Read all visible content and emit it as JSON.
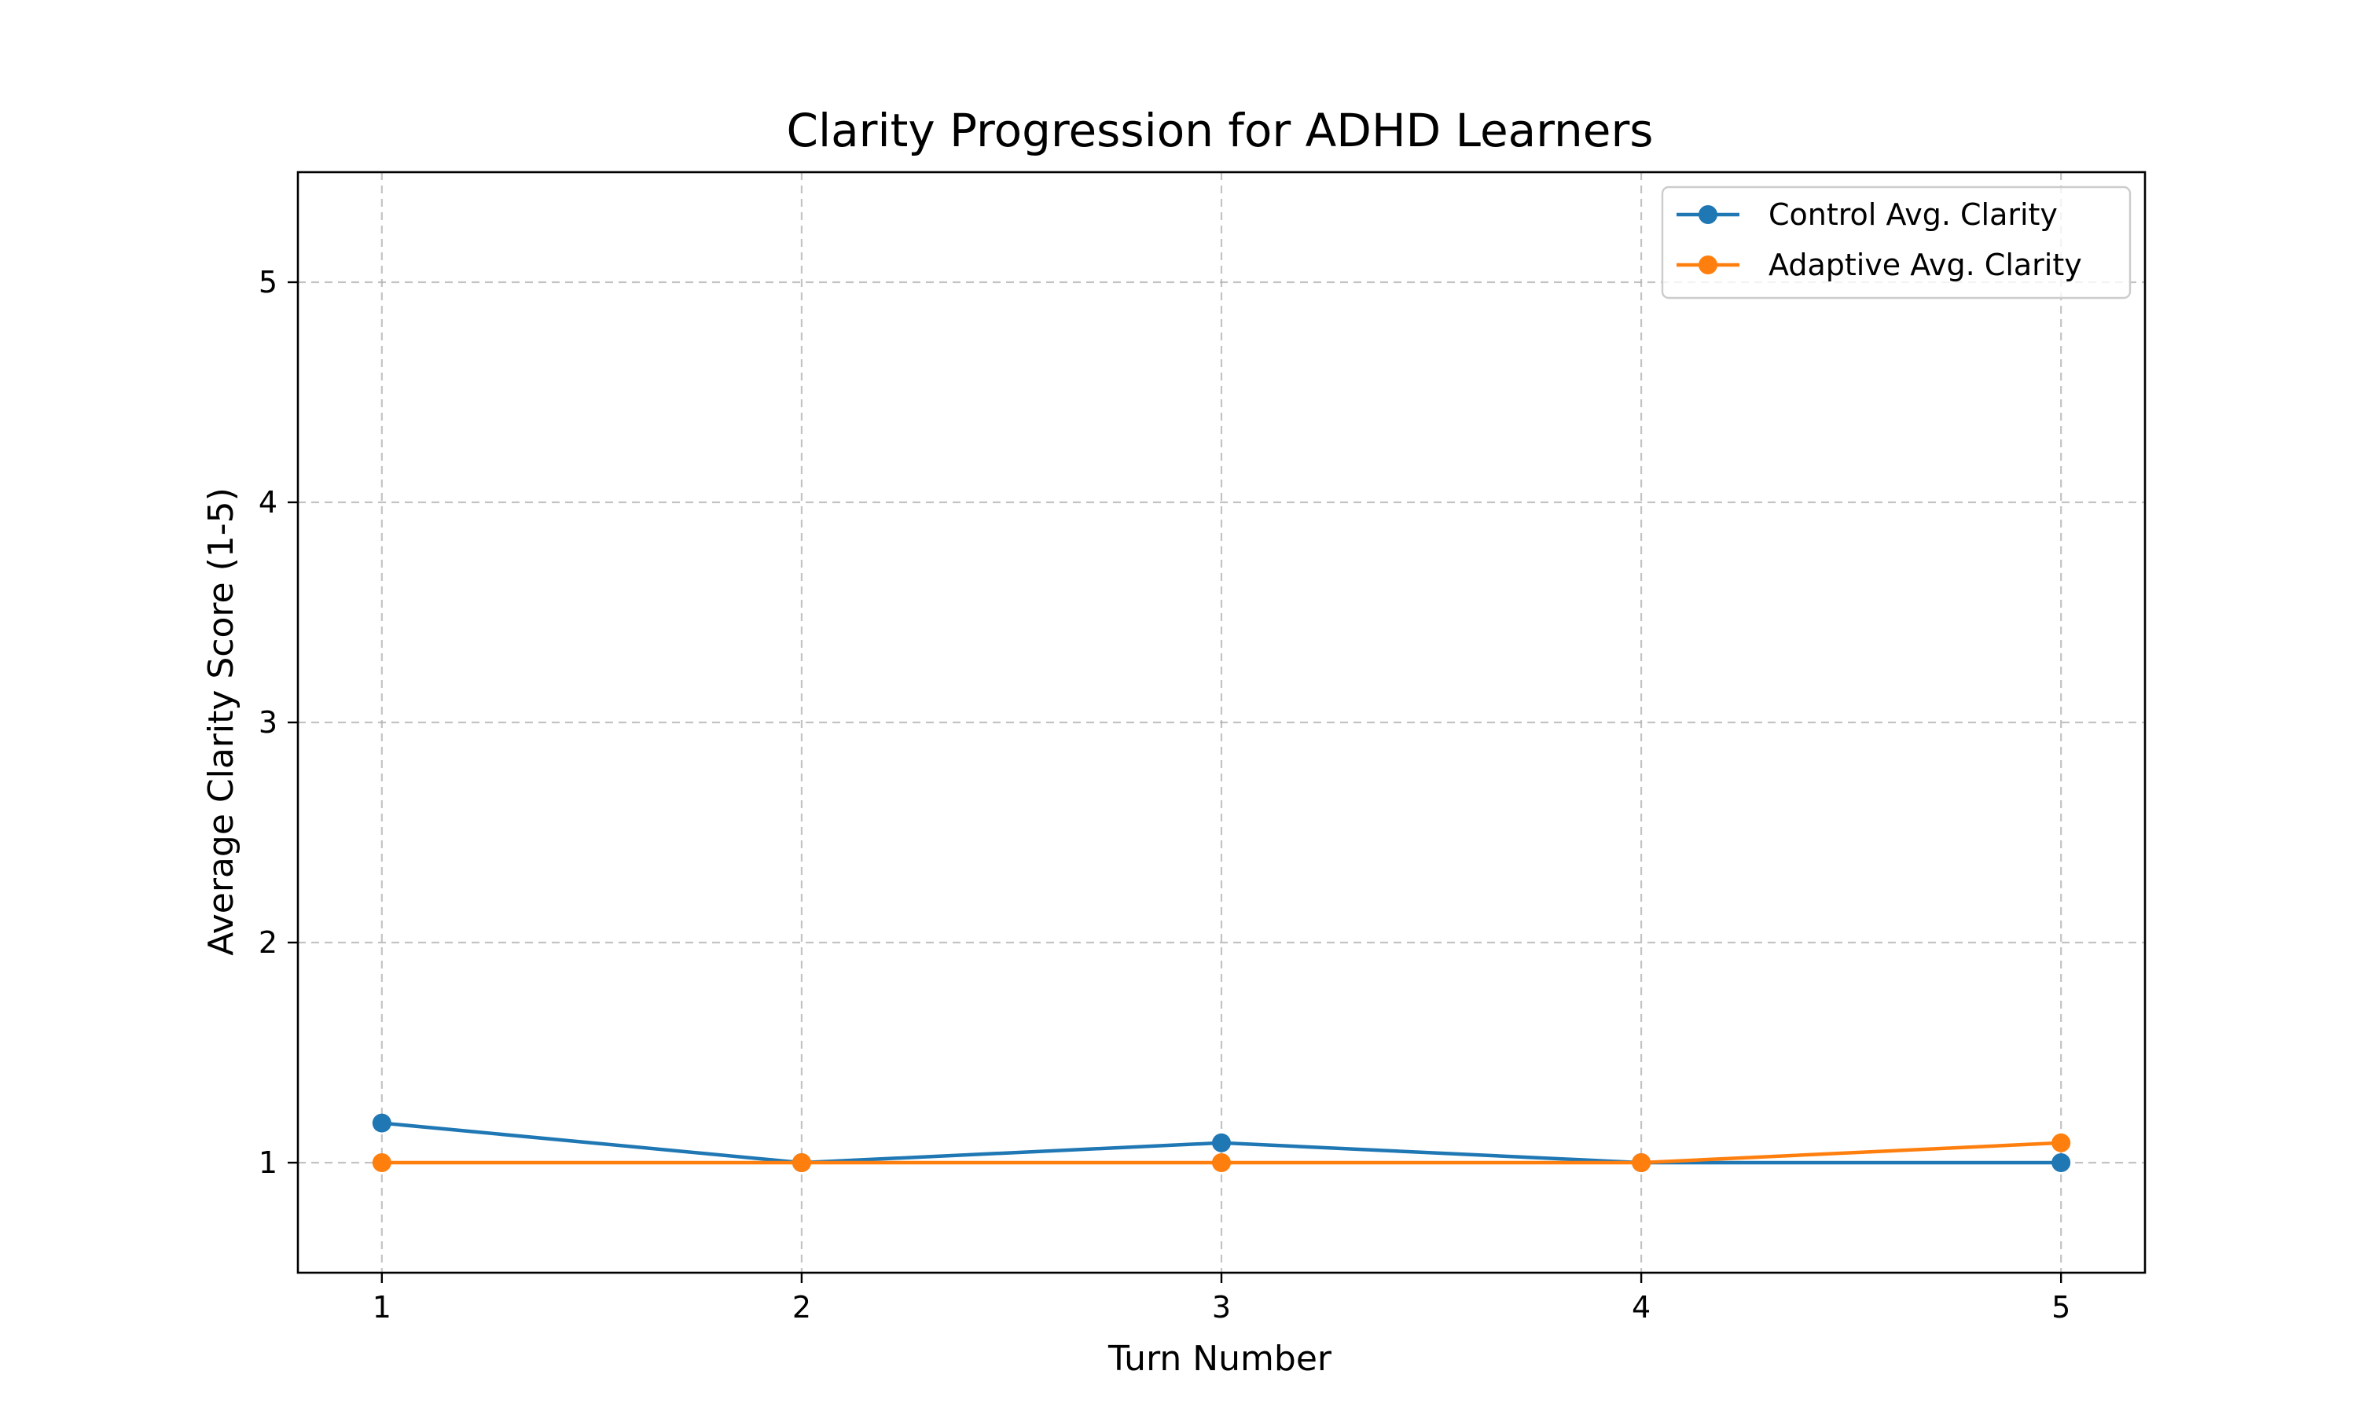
{
  "chart_data": {
    "type": "line",
    "title": "Clarity Progression for ADHD Learners",
    "xlabel": "Turn Number",
    "ylabel": "Average Clarity Score (1-5)",
    "x": [
      1,
      2,
      3,
      4,
      5
    ],
    "x_ticks": [
      "1",
      "2",
      "3",
      "4",
      "5"
    ],
    "y_ticks": [
      "1",
      "2",
      "3",
      "4",
      "5"
    ],
    "xlim": [
      0.8,
      5.2
    ],
    "ylim": [
      0.5,
      5.5
    ],
    "grid": true,
    "legend_position": "top-right",
    "series": [
      {
        "name": "Control Avg. Clarity",
        "color": "#1f77b4",
        "marker": "circle",
        "values": [
          1.18,
          1.0,
          1.09,
          1.0,
          1.0
        ]
      },
      {
        "name": "Adaptive Avg. Clarity",
        "color": "#ff7f0e",
        "marker": "circle",
        "values": [
          1.0,
          1.0,
          1.0,
          1.0,
          1.09
        ]
      }
    ]
  }
}
